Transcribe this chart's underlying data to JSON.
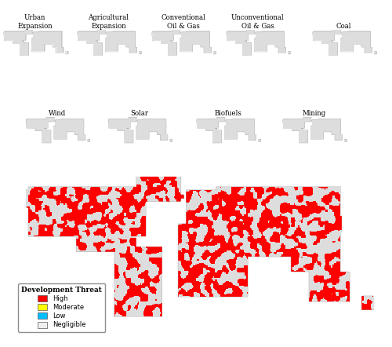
{
  "row1_labels": [
    "Urban\nExpansion",
    "Agricultural\nExpansion",
    "Conventional\nOil & Gas",
    "Unconventional\nOil & Gas",
    "Coal"
  ],
  "row2_labels": [
    "Wind",
    "Solar",
    "Biofuels",
    "Mining"
  ],
  "legend_title": "Development Threat",
  "legend_items": [
    {
      "label": "High",
      "color": "#FF0000"
    },
    {
      "label": "Moderate",
      "color": "#FFFF00"
    },
    {
      "label": "Low",
      "color": "#00BFFF"
    },
    {
      "label": "Negligible",
      "color": "#F0F0F0"
    }
  ],
  "background_color": "#FFFFFF",
  "continent_color": "#DDDDDD",
  "ocean_color": "#FFFFFF",
  "border_color": "#AAAAAA"
}
